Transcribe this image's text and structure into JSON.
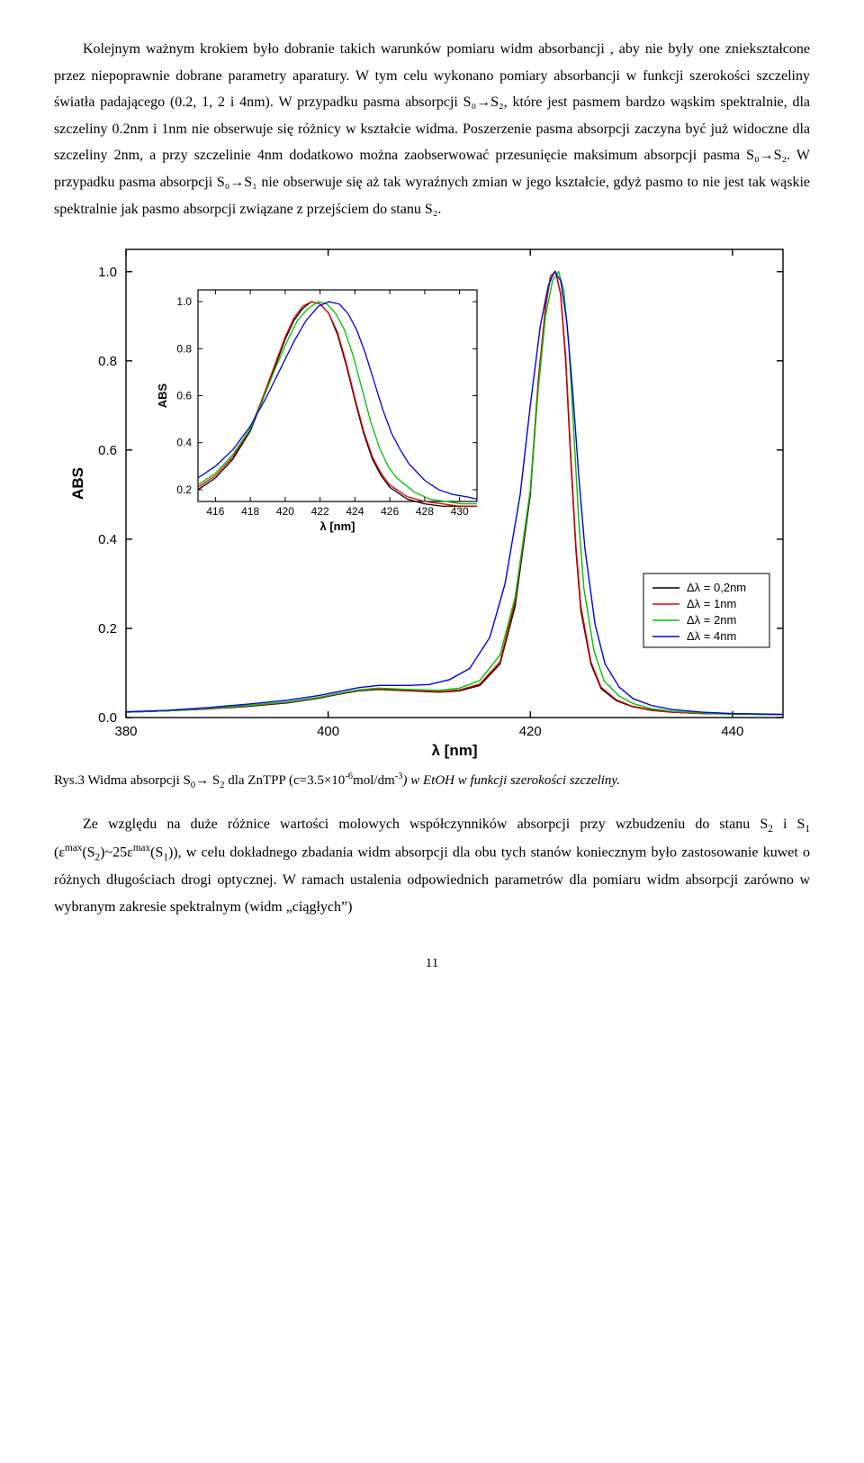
{
  "para1": "Kolejnym ważnym krokiem było dobranie takich warunków pomiaru widm absorbancji , aby nie były one zniekształcone przez niepoprawnie dobrane parametry aparatury. W tym celu wykonano pomiary absorbancji w funkcji szerokości szczeliny światła padającego (0.2, 1, 2 i 4nm). W przypadku pasma absorpcji S₀→S₂, które jest pasmem bardzo wąskim spektralnie, dla szczeliny 0.2nm i 1nm nie obserwuje się różnicy w kształcie widma. Poszerzenie pasma absorpcji zaczyna być już widoczne dla szczeliny 2nm, a przy szczelinie 4nm dodatkowo można zaobserwować przesunięcie maksimum absorpcji pasma S₀→S₂. W przypadku pasma absorpcji S₀→S₁ nie obserwuje się aż tak wyraźnych zmian w jego kształcie, gdyż pasmo to nie jest tak wąskie spektralnie jak pasmo absorpcji związane z przejściem do stanu S₂.",
  "caption_prefix": "Rys.3 Widma absorpcji S",
  "caption_sub1": "0",
  "caption_arrow": "→ S",
  "caption_sub2": "2",
  "caption_mid": " dla ZnTPP (c=3.5×10",
  "caption_sup1": "-6",
  "caption_mid2": "mol/dm",
  "caption_sup2": "-3",
  "caption_italic": ") w EtOH w funkcji szerokości szczeliny.",
  "para2_a": "Ze względu na duże różnice wartości molowych współczynników absorpcji przy wzbudzeniu do stanu S",
  "para2_b": " i S",
  "para2_c": " (ε",
  "para2_d": "(S",
  "para2_e": ")~25ε",
  "para2_f": "(S",
  "para2_g": ")), w celu dokładnego zbadania widm absorpcji dla obu tych stanów koniecznym było zastosowanie kuwet o różnych długościach drogi optycznej. W ramach ustalenia odpowiednich parametrów dla pomiaru widm absorpcji zarówno w wybranym zakresie spektralnym (widm „ciągłych”)",
  "pagenum": "11",
  "main_chart": {
    "xlabel": "λ [nm]",
    "ylabel": "ABS",
    "xlim": [
      380,
      445
    ],
    "ylim": [
      0.0,
      1.05
    ],
    "xticks": [
      380,
      400,
      420,
      440
    ],
    "yticks": [
      0.0,
      0.2,
      0.4,
      0.6,
      0.8,
      1.0
    ],
    "axis_fontsize": 15,
    "label_fontsize": 17,
    "series": [
      {
        "color": "#000000",
        "name": "Δλ = 0,2nm",
        "x": [
          380,
          384,
          388,
          392,
          396,
          399,
          401,
          403,
          405,
          408,
          411,
          413,
          415,
          417,
          418.5,
          420,
          420.8,
          421.5,
          422,
          422.5,
          423,
          423.5,
          424,
          424.5,
          425,
          426,
          427,
          428.5,
          430,
          432,
          434,
          437,
          440,
          443,
          445
        ],
        "y": [
          0.012,
          0.015,
          0.019,
          0.025,
          0.033,
          0.043,
          0.052,
          0.06,
          0.063,
          0.06,
          0.057,
          0.06,
          0.072,
          0.12,
          0.25,
          0.5,
          0.75,
          0.92,
          0.99,
          1.0,
          0.95,
          0.8,
          0.58,
          0.38,
          0.24,
          0.12,
          0.065,
          0.038,
          0.025,
          0.016,
          0.012,
          0.009,
          0.008,
          0.007,
          0.007
        ]
      },
      {
        "color": "#e00000",
        "name": "Δλ = 1nm",
        "x": [
          380,
          384,
          388,
          392,
          396,
          399,
          401,
          403,
          405,
          408,
          411,
          413,
          415,
          417,
          418.5,
          420,
          420.8,
          421.5,
          422,
          422.5,
          423,
          423.5,
          424,
          424.5,
          425,
          426,
          427,
          428.5,
          430,
          432,
          434,
          437,
          440,
          443,
          445
        ],
        "y": [
          0.012,
          0.015,
          0.019,
          0.026,
          0.034,
          0.044,
          0.053,
          0.061,
          0.064,
          0.061,
          0.058,
          0.062,
          0.075,
          0.125,
          0.26,
          0.51,
          0.76,
          0.92,
          0.99,
          1.0,
          0.95,
          0.81,
          0.59,
          0.39,
          0.25,
          0.125,
          0.068,
          0.04,
          0.026,
          0.017,
          0.012,
          0.009,
          0.008,
          0.007,
          0.007
        ]
      },
      {
        "color": "#00c000",
        "name": "Δλ = 2nm",
        "x": [
          380,
          384,
          388,
          392,
          396,
          399,
          401,
          403,
          405,
          408,
          411,
          413,
          415,
          417,
          418.5,
          420,
          420.8,
          421.5,
          422.2,
          422.8,
          423.3,
          423.8,
          424.3,
          424.8,
          425.3,
          426.3,
          427.3,
          428.8,
          430.2,
          432,
          434,
          437,
          440,
          443,
          445
        ],
        "y": [
          0.012,
          0.015,
          0.02,
          0.027,
          0.035,
          0.045,
          0.054,
          0.062,
          0.066,
          0.063,
          0.061,
          0.066,
          0.083,
          0.14,
          0.27,
          0.51,
          0.74,
          0.9,
          0.98,
          1.0,
          0.96,
          0.84,
          0.64,
          0.44,
          0.29,
          0.15,
          0.082,
          0.048,
          0.031,
          0.02,
          0.014,
          0.01,
          0.008,
          0.007,
          0.007
        ]
      },
      {
        "color": "#0000e0",
        "name": "Δλ = 4nm",
        "x": [
          380,
          384,
          388,
          392,
          396,
          399,
          401,
          403,
          405,
          408,
          410,
          412,
          414,
          416,
          417.5,
          419,
          420,
          421,
          421.8,
          422.4,
          423,
          423.6,
          424.2,
          424.8,
          425.4,
          426.4,
          427.4,
          428.8,
          430.2,
          432,
          434,
          437,
          440,
          443,
          445
        ],
        "y": [
          0.013,
          0.016,
          0.022,
          0.03,
          0.039,
          0.049,
          0.058,
          0.067,
          0.072,
          0.072,
          0.074,
          0.085,
          0.11,
          0.18,
          0.3,
          0.5,
          0.7,
          0.88,
          0.97,
          1.0,
          0.98,
          0.89,
          0.73,
          0.54,
          0.38,
          0.21,
          0.12,
          0.068,
          0.042,
          0.027,
          0.018,
          0.012,
          0.009,
          0.008,
          0.007
        ]
      }
    ]
  },
  "inset_chart": {
    "xlabel": "λ [nm]",
    "ylabel": "ABS",
    "xlim": [
      415,
      431
    ],
    "ylim": [
      0.15,
      1.05
    ],
    "xticks": [
      416,
      418,
      420,
      422,
      424,
      426,
      428,
      430
    ],
    "yticks": [
      0.2,
      0.4,
      0.6,
      0.8,
      1.0
    ],
    "axis_fontsize": 12,
    "label_fontsize": 13,
    "series": [
      {
        "color": "#000000",
        "x": [
          415,
          416,
          417,
          418,
          418.7,
          419.4,
          420,
          420.5,
          421,
          421.5,
          422,
          422.5,
          423,
          423.5,
          424,
          424.5,
          425,
          425.5,
          426,
          427,
          428,
          429,
          430,
          431
        ],
        "y": [
          0.2,
          0.25,
          0.33,
          0.45,
          0.58,
          0.72,
          0.84,
          0.92,
          0.97,
          1.0,
          0.99,
          0.95,
          0.86,
          0.73,
          0.58,
          0.44,
          0.33,
          0.26,
          0.21,
          0.16,
          0.14,
          0.13,
          0.13,
          0.13
        ]
      },
      {
        "color": "#e00000",
        "x": [
          415,
          416,
          417,
          418,
          418.7,
          419.4,
          420,
          420.5,
          421,
          421.5,
          422,
          422.5,
          423,
          423.5,
          424,
          424.5,
          425,
          425.5,
          426,
          427,
          428,
          429,
          430,
          431
        ],
        "y": [
          0.21,
          0.26,
          0.34,
          0.46,
          0.59,
          0.73,
          0.85,
          0.93,
          0.98,
          1.0,
          0.99,
          0.95,
          0.87,
          0.74,
          0.59,
          0.45,
          0.34,
          0.27,
          0.22,
          0.17,
          0.15,
          0.14,
          0.13,
          0.13
        ]
      },
      {
        "color": "#00c000",
        "x": [
          415,
          416,
          417,
          418,
          418.7,
          419.4,
          420.1,
          420.7,
          421.3,
          421.9,
          422.4,
          422.9,
          423.4,
          423.9,
          424.4,
          424.9,
          425.4,
          425.9,
          426.4,
          427.4,
          428.3,
          429.2,
          430.1,
          431
        ],
        "y": [
          0.22,
          0.27,
          0.35,
          0.46,
          0.58,
          0.71,
          0.83,
          0.92,
          0.97,
          1.0,
          0.99,
          0.95,
          0.88,
          0.77,
          0.63,
          0.49,
          0.38,
          0.3,
          0.25,
          0.19,
          0.16,
          0.15,
          0.14,
          0.14
        ]
      },
      {
        "color": "#0000e0",
        "x": [
          415,
          416,
          417,
          418,
          418.9,
          419.7,
          420.5,
          421.2,
          421.9,
          422.5,
          423.1,
          423.6,
          424.1,
          424.6,
          425.1,
          425.6,
          426.1,
          426.6,
          427.1,
          428,
          428.8,
          429.6,
          430.4,
          431
        ],
        "y": [
          0.25,
          0.3,
          0.37,
          0.47,
          0.59,
          0.71,
          0.83,
          0.92,
          0.98,
          1.0,
          0.99,
          0.95,
          0.88,
          0.78,
          0.66,
          0.54,
          0.44,
          0.37,
          0.31,
          0.24,
          0.2,
          0.18,
          0.17,
          0.16
        ]
      }
    ]
  },
  "legend_title_prefix": "Δλ = "
}
